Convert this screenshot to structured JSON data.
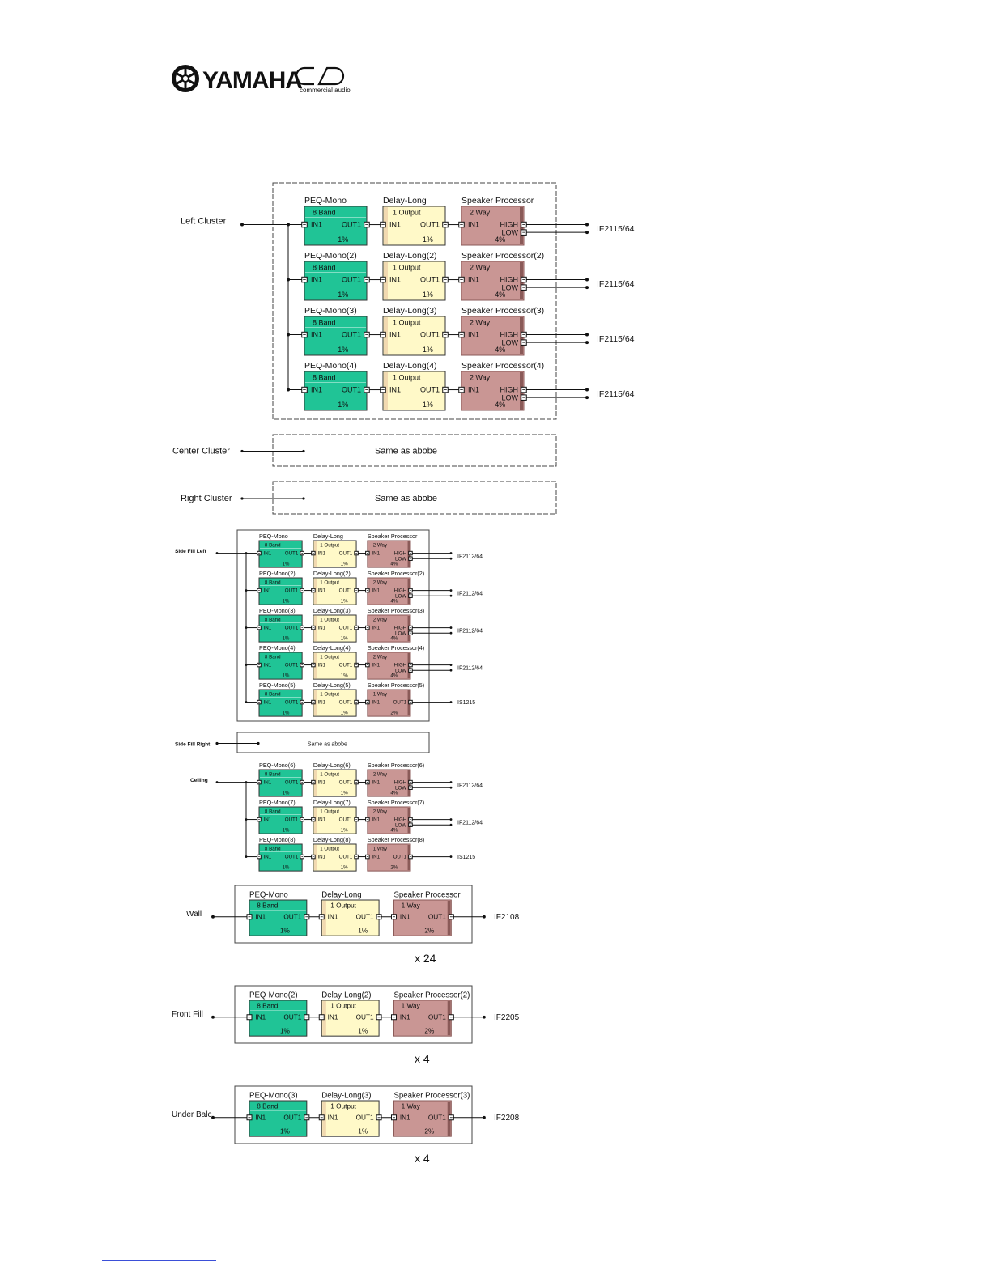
{
  "brand": {
    "name": "YAMAHA",
    "sub": "commercial audio"
  },
  "colors": {
    "peq": "#20c496",
    "delay": "#fff9c8",
    "spk": "#c99694",
    "spk_edge": "#8a5a58",
    "box": "#333333"
  },
  "chain_defaults": {
    "peq_sub": "8 Band",
    "delay_sub": "1 Output",
    "in_label": "IN1",
    "out_label": "OUT1",
    "peq_pct": "1%",
    "delay_pct": "1%",
    "high": "HIGH",
    "low": "LOW"
  },
  "sections": [
    {
      "id": "left-cluster",
      "label": "Left Cluster",
      "rows": [
        {
          "peq": "PEQ-Mono",
          "delay": "Delay-Long",
          "spk": "Speaker Processor",
          "spk_sub": "2 Way",
          "spk_pct": "4%",
          "target": "IF2115/64"
        },
        {
          "peq": "PEQ-Mono(2)",
          "delay": "Delay-Long(2)",
          "spk": "Speaker Processor(2)",
          "spk_sub": "2 Way",
          "spk_pct": "4%",
          "target": "IF2115/64"
        },
        {
          "peq": "PEQ-Mono(3)",
          "delay": "Delay-Long(3)",
          "spk": "Speaker Processor(3)",
          "spk_sub": "2 Way",
          "spk_pct": "4%",
          "target": "IF2115/64"
        },
        {
          "peq": "PEQ-Mono(4)",
          "delay": "Delay-Long(4)",
          "spk": "Speaker Processor(4)",
          "spk_sub": "2 Way",
          "spk_pct": "4%",
          "target": "IF2115/64"
        }
      ]
    },
    {
      "id": "center-cluster",
      "label": "Center Cluster",
      "same": "Same as abobe"
    },
    {
      "id": "right-cluster",
      "label": "Right Cluster",
      "same": "Same as abobe"
    },
    {
      "id": "side-fill-left",
      "label": "Side Fill Left",
      "rows": [
        {
          "peq": "PEQ-Mono",
          "delay": "Delay-Long",
          "spk": "Speaker Processor",
          "spk_sub": "2 Way",
          "spk_pct": "4%",
          "target": "IF2112/64"
        },
        {
          "peq": "PEQ-Mono(2)",
          "delay": "Delay-Long(2)",
          "spk": "Speaker Processor(2)",
          "spk_sub": "2 Way",
          "spk_pct": "4%",
          "target": "IF2112/64"
        },
        {
          "peq": "PEQ-Mono(3)",
          "delay": "Delay-Long(3)",
          "spk": "Speaker Processor(3)",
          "spk_sub": "2 Way",
          "spk_pct": "4%",
          "target": "IF2112/64"
        },
        {
          "peq": "PEQ-Mono(4)",
          "delay": "Delay-Long(4)",
          "spk": "Speaker Processor(4)",
          "spk_sub": "2 Way",
          "spk_pct": "4%",
          "target": "IF2112/64"
        },
        {
          "peq": "PEQ-Mono(5)",
          "delay": "Delay-Long(5)",
          "spk": "Speaker Processor(5)",
          "spk_sub": "1 Way",
          "spk_pct": "2%",
          "target": "IS1215"
        }
      ]
    },
    {
      "id": "side-fill-right",
      "label": "Side Fill Right",
      "same": "Same as abobe"
    },
    {
      "id": "ceiling",
      "label": "Ceiling",
      "rows": [
        {
          "peq": "PEQ-Mono(6)",
          "delay": "Delay-Long(6)",
          "spk": "Speaker Processor(6)",
          "spk_sub": "2 Way",
          "spk_pct": "4%",
          "target": "IF2112/64"
        },
        {
          "peq": "PEQ-Mono(7)",
          "delay": "Delay-Long(7)",
          "spk": "Speaker Processor(7)",
          "spk_sub": "2 Way",
          "spk_pct": "4%",
          "target": "IF2112/64"
        },
        {
          "peq": "PEQ-Mono(8)",
          "delay": "Delay-Long(8)",
          "spk": "Speaker Processor(8)",
          "spk_sub": "1 Way",
          "spk_pct": "2%",
          "target": "IS1215"
        }
      ]
    },
    {
      "id": "wall",
      "label": "Wall",
      "multiplier": "x  24",
      "rows": [
        {
          "peq": "PEQ-Mono",
          "delay": "Delay-Long",
          "spk": "Speaker Processor",
          "spk_sub": "1 Way",
          "spk_pct": "2%",
          "target": "IF2108"
        }
      ]
    },
    {
      "id": "front-fill",
      "label": "Front Fill",
      "multiplier": "x  4",
      "rows": [
        {
          "peq": "PEQ-Mono(2)",
          "delay": "Delay-Long(2)",
          "spk": "Speaker Processor(2)",
          "spk_sub": "1 Way",
          "spk_pct": "2%",
          "target": "IF2205"
        }
      ]
    },
    {
      "id": "under-balc",
      "label": "Under Balc",
      "multiplier": "x  4",
      "rows": [
        {
          "peq": "PEQ-Mono(3)",
          "delay": "Delay-Long(3)",
          "spk": "Speaker Processor(3)",
          "spk_sub": "1 Way",
          "spk_pct": "2%",
          "target": "IF2208"
        }
      ]
    }
  ]
}
